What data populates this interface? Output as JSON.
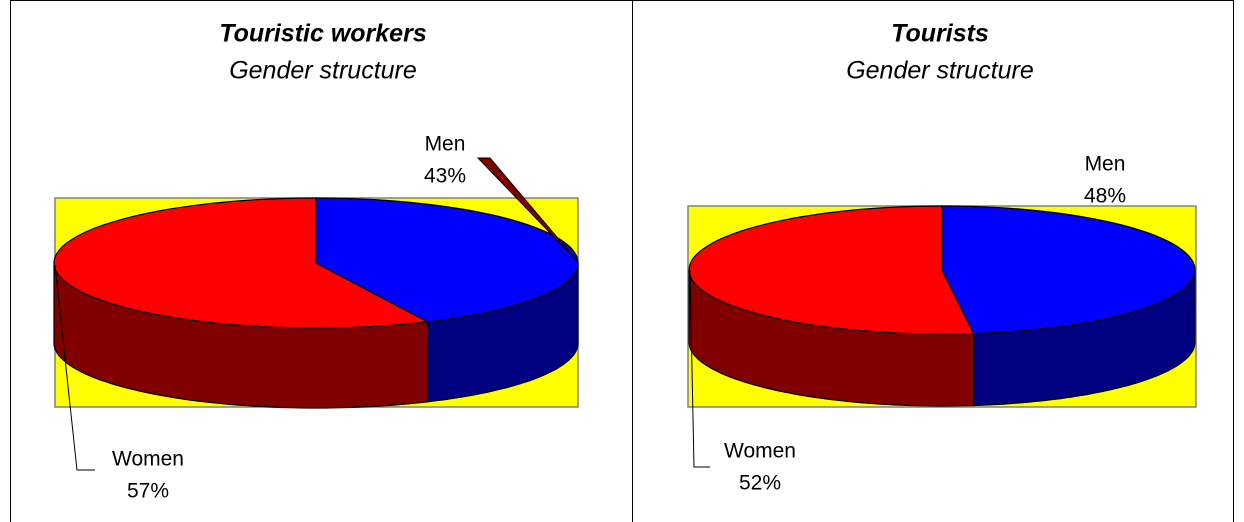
{
  "chart_data": [
    {
      "type": "pie",
      "title": "Touristic workers",
      "subtitle": "Gender structure",
      "categories": [
        "Men",
        "Women"
      ],
      "values": [
        43,
        57
      ],
      "value_labels": [
        "43%",
        "57%"
      ],
      "colors": [
        "#0000ff",
        "#ff0000"
      ],
      "side_colors": [
        "#000080",
        "#800000"
      ],
      "background": "#ffff00"
    },
    {
      "type": "pie",
      "title": "Tourists",
      "subtitle": "Gender structure",
      "categories": [
        "Men",
        "Women"
      ],
      "values": [
        48,
        52
      ],
      "value_labels": [
        "48%",
        "52%"
      ],
      "colors": [
        "#0000ff",
        "#ff0000"
      ],
      "side_colors": [
        "#000080",
        "#800000"
      ],
      "background": "#ffff00"
    }
  ]
}
